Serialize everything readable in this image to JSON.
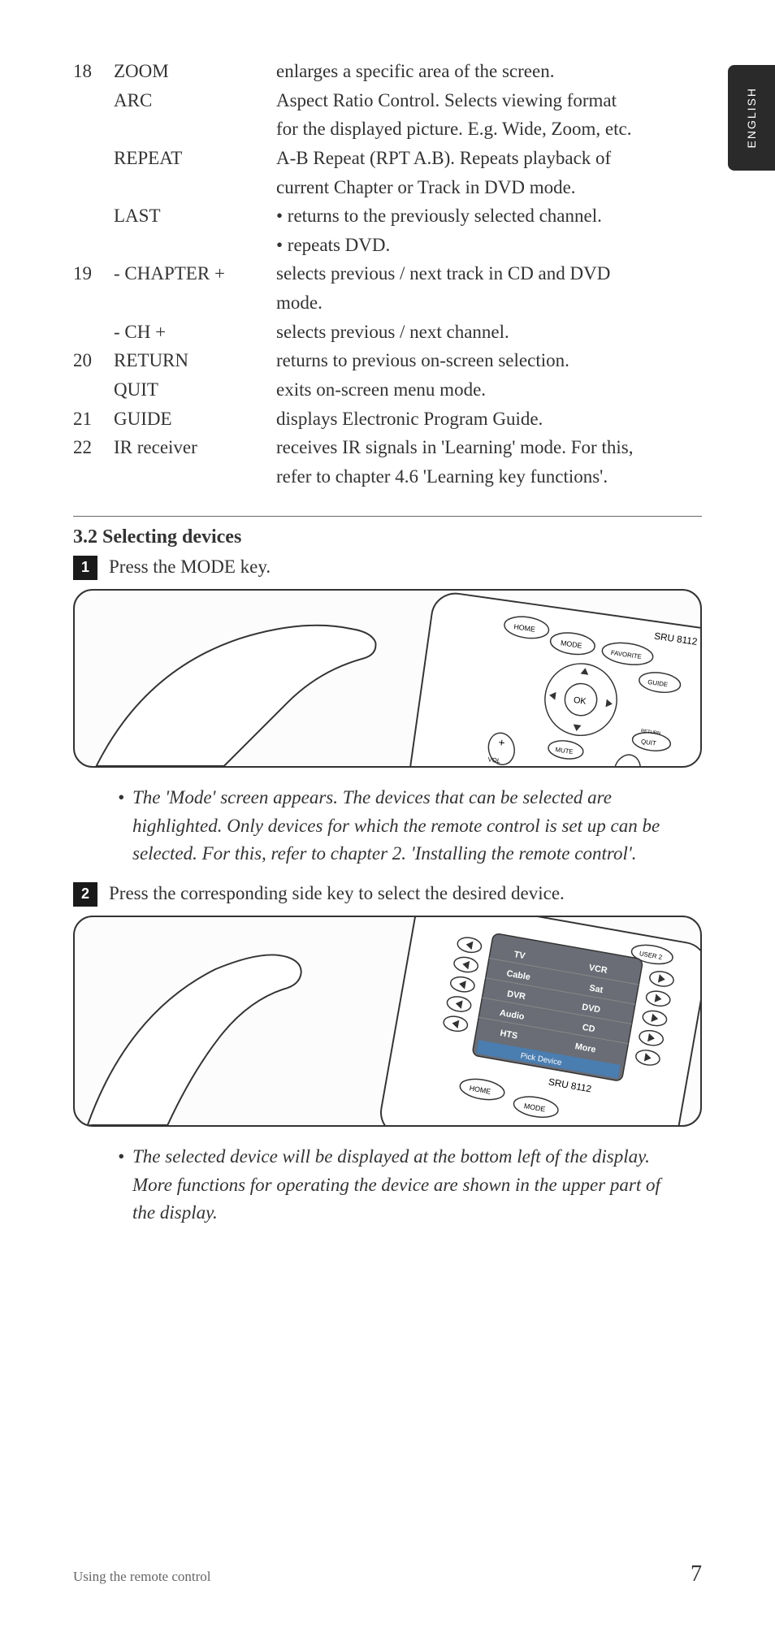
{
  "langTab": "ENGLISH",
  "definitions": [
    {
      "num": "18",
      "term": "ZOOM",
      "desc": "enlarges a specific area of the screen."
    },
    {
      "num": "",
      "term": "ARC",
      "desc": "Aspect Ratio Control. Selects viewing format for the displayed picture. E.g. Wide, Zoom, etc."
    },
    {
      "num": "",
      "term": "REPEAT",
      "desc": "A-B Repeat (RPT A.B). Repeats playback of current Chapter or Track in DVD mode."
    },
    {
      "num": "",
      "term": "LAST",
      "desc": "",
      "bullets": [
        "returns to the previously selected channel.",
        "repeats DVD."
      ]
    },
    {
      "num": "19",
      "term": "- CHAPTER +",
      "desc": "selects previous / next track in CD and DVD mode."
    },
    {
      "num": "",
      "term": "- CH +",
      "desc": "selects previous / next channel."
    },
    {
      "num": "20",
      "term": "RETURN",
      "desc": "returns to previous on-screen selection."
    },
    {
      "num": "",
      "term": "QUIT",
      "desc": "exits on-screen menu mode."
    },
    {
      "num": "21",
      "term": "GUIDE",
      "desc": "displays Electronic Program Guide."
    },
    {
      "num": "22",
      "term": "IR receiver",
      "desc": "receives IR signals in 'Learning' mode. For this, refer to chapter 4.6 'Learning key functions'."
    }
  ],
  "sectionTitle": "3.2 Selecting devices",
  "step1": {
    "num": "1",
    "text": "Press the MODE key."
  },
  "note1": "The 'Mode' screen appears. The devices that can be selected are highlighted. Only devices for which the remote control is set up can be selected. For this, refer to chapter 2. 'Installing the remote control'.",
  "step2": {
    "num": "2",
    "text": "Press the corresponding side key to select the desired device."
  },
  "note2": "The selected device will be displayed at the bottom left of the display. More functions for operating the device are shown in the upper part of the display.",
  "image1": {
    "labels": {
      "model": "SRU 8112",
      "home": "HOME",
      "mode": "MODE",
      "favorite": "FAVORITE",
      "guide": "GUIDE",
      "ok": "OK",
      "mute": "MUTE",
      "vol": "VOL",
      "quit": "QUIT",
      "return": "RETURN"
    }
  },
  "image2": {
    "labels": {
      "user2": "USER 2",
      "tv": "TV",
      "vcr": "VCR",
      "cable": "Cable",
      "sat": "Sat",
      "dvr": "DVR",
      "dvd": "DVD",
      "audio": "Audio",
      "cd": "CD",
      "hts": "HTS",
      "more": "More",
      "pick": "Pick Device",
      "model": "SRU 8112",
      "home": "HOME",
      "mode": "MODE"
    }
  },
  "footer": {
    "text": "Using the remote control",
    "page": "7"
  }
}
